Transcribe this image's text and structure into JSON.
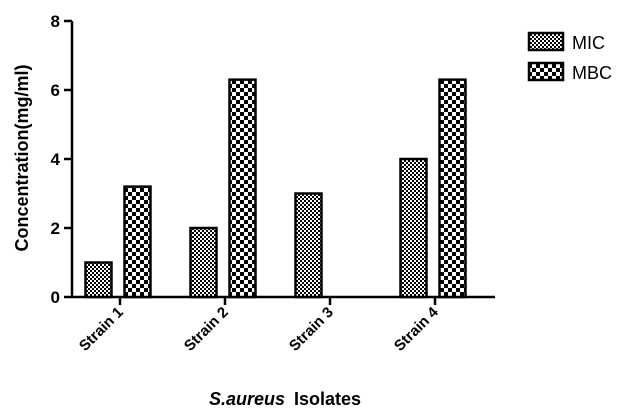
{
  "chart_data": {
    "type": "bar",
    "categories": [
      "Strain 1",
      "Strain 2",
      "Strain 3",
      "Strain 4"
    ],
    "series": [
      {
        "name": "MIC",
        "values": [
          1,
          2,
          3,
          4
        ],
        "pattern": "fine-check"
      },
      {
        "name": "MBC",
        "values": [
          3.2,
          6.3,
          null,
          6.3
        ],
        "pattern": "coarse-check"
      }
    ],
    "ylabel": "Concentration(mg/ml)",
    "xlabel_italic": "S.aureus",
    "xlabel_rest": "Isolates",
    "ylim": [
      0,
      8
    ],
    "yticks": [
      0,
      2,
      4,
      6,
      8
    ],
    "grid": false,
    "legend_position": "top-right",
    "colors": {
      "bar_fill_dark": "#000000",
      "bar_fill_light": "#ffffff",
      "axis": "#000000"
    }
  }
}
